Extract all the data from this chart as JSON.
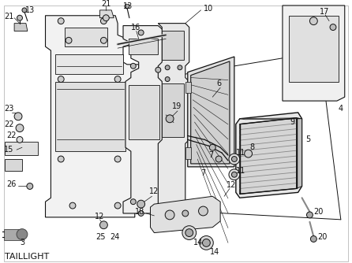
{
  "title": "TAILLIGHT",
  "bg": "#ffffff",
  "lc": "#111111",
  "fig_w": 4.46,
  "fig_h": 3.34,
  "dpi": 100,
  "fs": 7.0,
  "border": "#aaaaaa"
}
